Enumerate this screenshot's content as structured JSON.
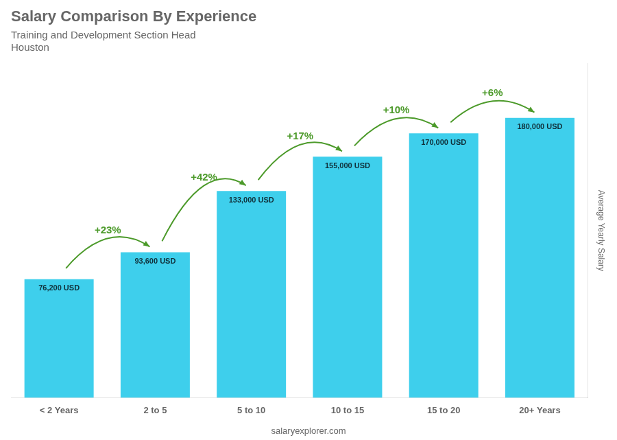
{
  "chart_data": {
    "type": "bar",
    "title": "Salary Comparison By Experience",
    "subtitle": [
      "Training and Development Section Head",
      "Houston"
    ],
    "categories": [
      "< 2 Years",
      "2 to 5",
      "5 to 10",
      "10 to 15",
      "15 to 20",
      "20+ Years"
    ],
    "values": [
      76200,
      93600,
      133000,
      155000,
      170000,
      180000
    ],
    "value_labels": [
      "76,200 USD",
      "93,600 USD",
      "133,000 USD",
      "155,000 USD",
      "170,000 USD",
      "180,000 USD"
    ],
    "data_labels": true,
    "color": "#3ecfec",
    "y_label": "Average Yearly Salary",
    "ylim": [
      0,
      215000
    ],
    "tick_labels": "x",
    "grid": false,
    "annotations": [
      {
        "text": "+23%",
        "from": "< 2 Years",
        "to": "2 to 5"
      },
      {
        "text": "+42%",
        "from": "2 to 5",
        "to": "5 to 10"
      },
      {
        "text": "+17%",
        "from": "5 to 10",
        "to": "10 to 15"
      },
      {
        "text": "+10%",
        "from": "10 to 15",
        "to": "15 to 20"
      },
      {
        "text": "+6%",
        "from": "15 to 20",
        "to": "20+ Years"
      },
      {
        "text": "salaryexplorer.com"
      }
    ]
  }
}
